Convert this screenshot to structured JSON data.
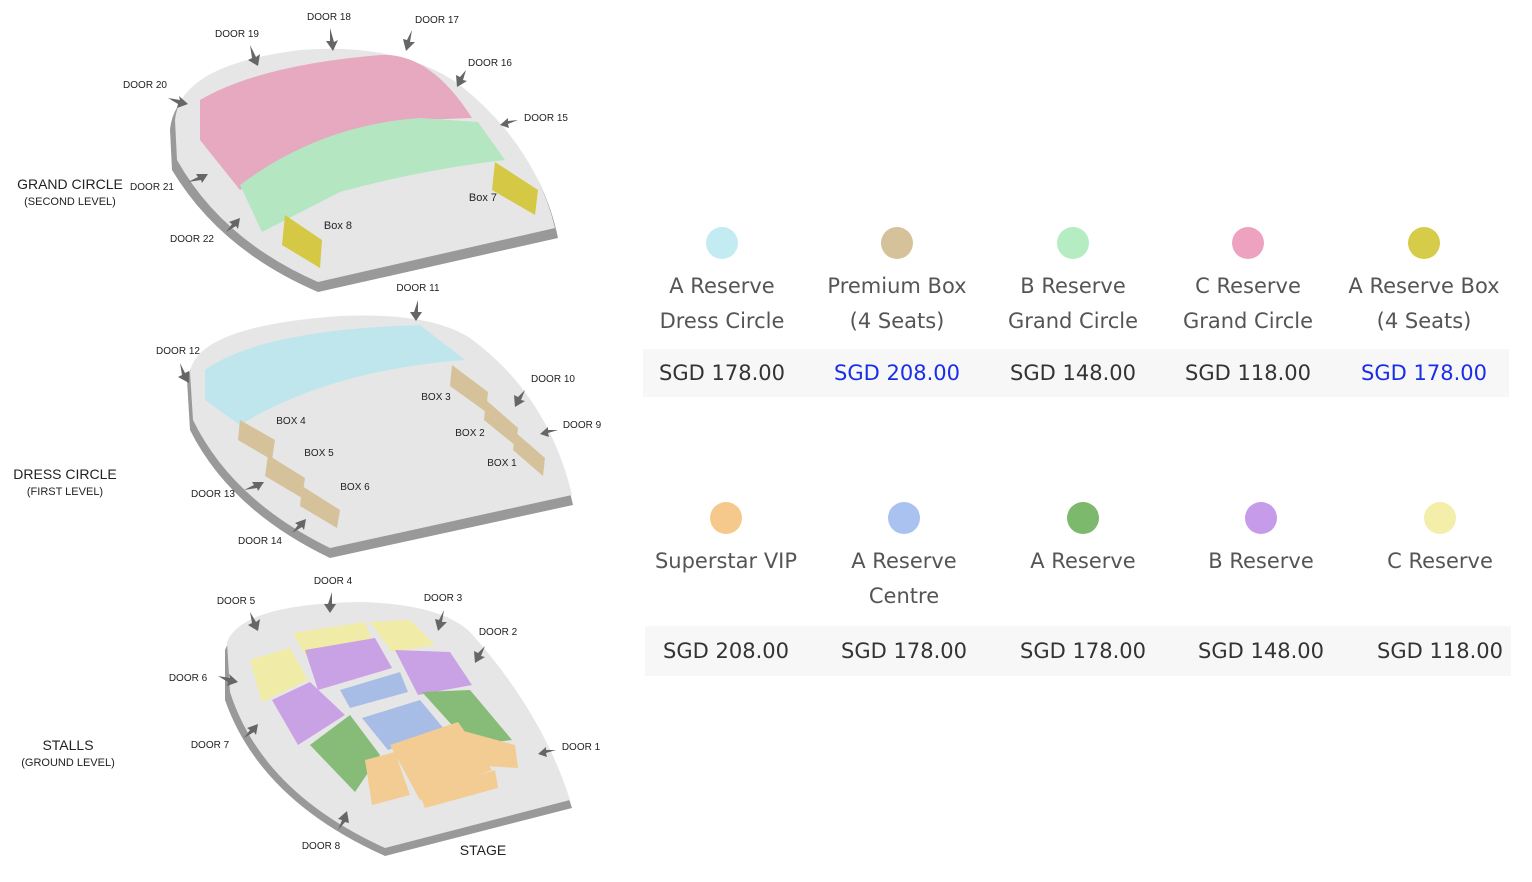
{
  "levels": {
    "grand": {
      "title": "GRAND CIRCLE",
      "subtitle": "(SECOND LEVEL)",
      "doors": [
        "DOOR 19",
        "DOOR 18",
        "DOOR 17",
        "DOOR 16",
        "DOOR 15",
        "DOOR 20",
        "DOOR 21",
        "DOOR 22"
      ],
      "boxes": [
        "Box 8",
        "Box 7"
      ]
    },
    "dress": {
      "title": "DRESS CIRCLE",
      "subtitle": "(FIRST LEVEL)",
      "doors": [
        "DOOR 11",
        "DOOR 12",
        "DOOR 10",
        "DOOR 9",
        "DOOR 13",
        "DOOR 14"
      ],
      "boxes": [
        "BOX 4",
        "BOX 5",
        "BOX 6",
        "BOX 3",
        "BOX 2",
        "BOX 1"
      ]
    },
    "stalls": {
      "title": "STALLS",
      "subtitle": "(GROUND LEVEL)",
      "doors": [
        "DOOR 4",
        "DOOR 5",
        "DOOR 3",
        "DOOR 2",
        "DOOR 6",
        "DOOR 7",
        "DOOR 1",
        "DOOR 8"
      ],
      "stage": "STAGE"
    }
  },
  "pricing": {
    "rows": [
      [
        {
          "name": [
            "A Reserve",
            "Dress Circle"
          ],
          "price": "SGD 178.00",
          "color": "#c2ecf2",
          "link": false
        },
        {
          "name": [
            "Premium Box",
            "(4 Seats)"
          ],
          "price": "SGD 208.00",
          "color": "#d5c29b",
          "link": true
        },
        {
          "name": [
            "B Reserve",
            "Grand Circle"
          ],
          "price": "SGD 148.00",
          "color": "#b5ecc2",
          "link": false
        },
        {
          "name": [
            "C Reserve",
            "Grand Circle"
          ],
          "price": "SGD 118.00",
          "color": "#eda3c0",
          "link": false
        },
        {
          "name": [
            "A Reserve Box",
            "(4 Seats)"
          ],
          "price": "SGD 178.00",
          "color": "#d6cc4a",
          "link": true
        }
      ],
      [
        {
          "name": [
            "Superstar VIP"
          ],
          "price": "SGD 208.00",
          "color": "#f5c98c",
          "link": false
        },
        {
          "name": [
            "A Reserve",
            "Centre"
          ],
          "price": "SGD 178.00",
          "color": "#a9c2f0",
          "link": false
        },
        {
          "name": [
            "A Reserve"
          ],
          "price": "SGD 178.00",
          "color": "#7cb96c",
          "link": false
        },
        {
          "name": [
            "B Reserve"
          ],
          "price": "SGD 148.00",
          "color": "#c59bea",
          "link": false
        },
        {
          "name": [
            "C Reserve"
          ],
          "price": "SGD 118.00",
          "color": "#f3eeaa",
          "link": false
        }
      ]
    ],
    "link_color": "#1a2ee8"
  }
}
